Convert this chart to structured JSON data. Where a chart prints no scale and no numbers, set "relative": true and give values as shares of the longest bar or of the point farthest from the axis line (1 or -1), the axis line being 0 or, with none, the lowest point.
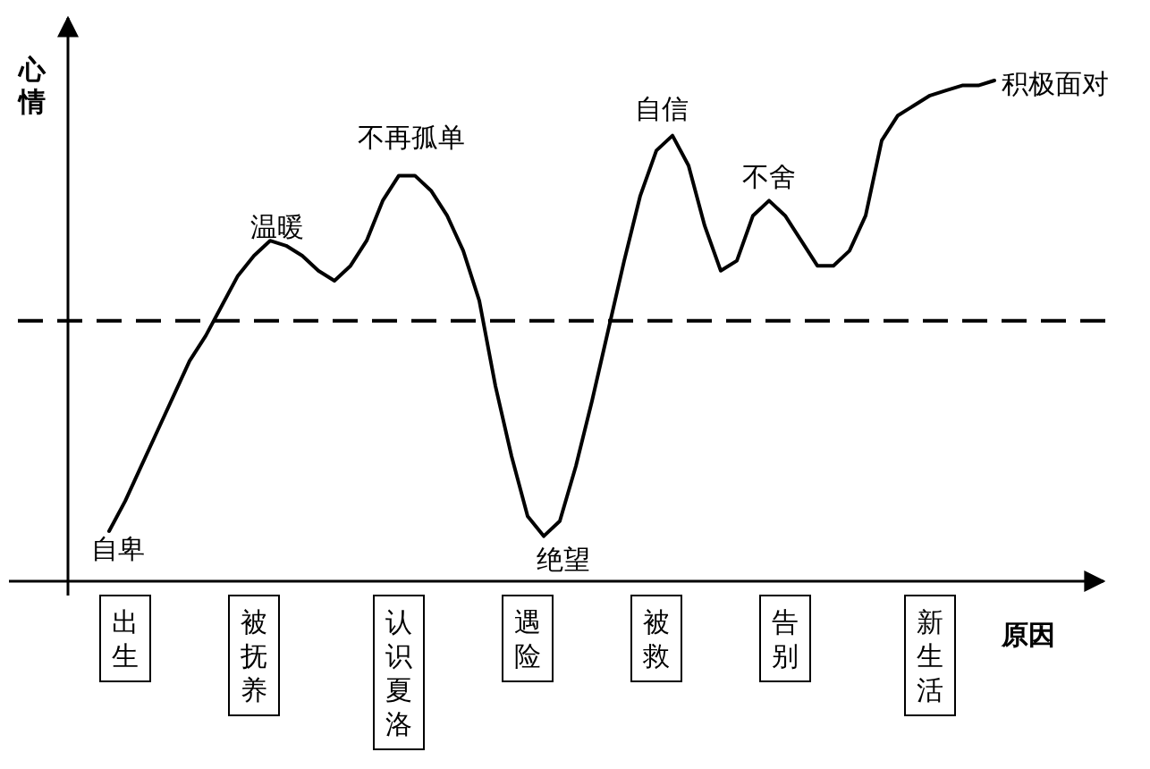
{
  "chart_data": {
    "type": "line",
    "relative": true,
    "ylabel": "心情",
    "xlabel": "原因",
    "categories": [
      null,
      null,
      "出生",
      null,
      null,
      null,
      null,
      null,
      null,
      null,
      "被抚养",
      null,
      null,
      null,
      null,
      null,
      null,
      null,
      null,
      "认识夏洛",
      null,
      null,
      null,
      null,
      null,
      null,
      null,
      "遇险",
      null,
      null,
      null,
      null,
      null,
      null,
      null,
      "被救",
      null,
      null,
      null,
      null,
      null,
      null,
      null,
      "告别",
      null,
      null,
      null,
      null,
      null,
      null,
      null,
      null,
      "新生活",
      null,
      null,
      null,
      null
    ],
    "series": [
      {
        "color": "#000000",
        "values": [
          null,
          0.1,
          0.16,
          0.23,
          0.3,
          0.37,
          0.44,
          0.49,
          0.55,
          0.61,
          0.65,
          0.68,
          0.67,
          0.65,
          0.62,
          0.6,
          0.63,
          0.68,
          0.76,
          0.81,
          0.81,
          0.78,
          0.73,
          0.66,
          0.56,
          0.39,
          0.25,
          0.13,
          0.09,
          0.12,
          0.23,
          0.36,
          0.5,
          0.64,
          0.77,
          0.86,
          0.89,
          0.83,
          0.71,
          0.62,
          0.64,
          0.73,
          0.76,
          0.73,
          0.68,
          0.63,
          0.63,
          0.66,
          0.73,
          0.88,
          0.93,
          0.95,
          0.97,
          0.98,
          0.99,
          0.99,
          1.0
        ]
      }
    ],
    "ref_lines": [
      {
        "axis": "y",
        "value": 0.52,
        "line_style": "dashed",
        "color": "#000000"
      }
    ],
    "annotations": [
      "自卑",
      "温暖",
      "不再孤单",
      "绝望",
      "自信",
      "不舍",
      "积极面对"
    ]
  }
}
